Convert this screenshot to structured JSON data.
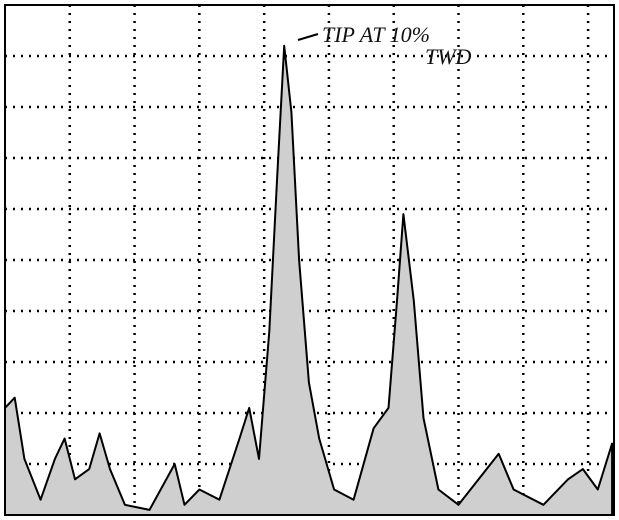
{
  "chart_data": {
    "type": "area",
    "annotations": [
      "TIP AT 10%",
      "TWD"
    ],
    "x": [
      0,
      0.15,
      0.3,
      0.55,
      0.77,
      0.92,
      1.08,
      1.3,
      1.46,
      1.62,
      1.85,
      2.23,
      2.62,
      2.77,
      3.0,
      3.31,
      3.62,
      3.77,
      3.92,
      4.08,
      4.2,
      4.31,
      4.42,
      4.54,
      4.69,
      4.85,
      5.08,
      5.38,
      5.69,
      5.92,
      6.05,
      6.15,
      6.31,
      6.46,
      6.69,
      7.0,
      7.31,
      7.62,
      7.85,
      8.31,
      8.69,
      8.92,
      9.15,
      9.37
    ],
    "values": [
      2.1,
      2.3,
      1.1,
      0.3,
      1.1,
      1.5,
      0.7,
      0.9,
      1.6,
      0.9,
      0.2,
      0.1,
      1.0,
      0.2,
      0.5,
      0.3,
      1.5,
      2.1,
      1.1,
      3.6,
      6.6,
      9.2,
      7.9,
      5.0,
      2.6,
      1.5,
      0.5,
      0.3,
      1.7,
      2.1,
      4.2,
      5.9,
      4.2,
      1.9,
      0.5,
      0.2,
      0.7,
      1.2,
      0.5,
      0.2,
      0.7,
      0.9,
      0.5,
      1.4
    ],
    "color": "#cfcfcf",
    "xlim": [
      0,
      9.4
    ],
    "xticks": [
      1,
      2,
      3,
      4,
      5,
      6,
      7,
      8,
      9
    ],
    "ylim": [
      0,
      10
    ],
    "yticks": [
      1,
      2,
      3,
      4,
      5,
      6,
      7,
      8,
      9
    ],
    "grid": true
  }
}
